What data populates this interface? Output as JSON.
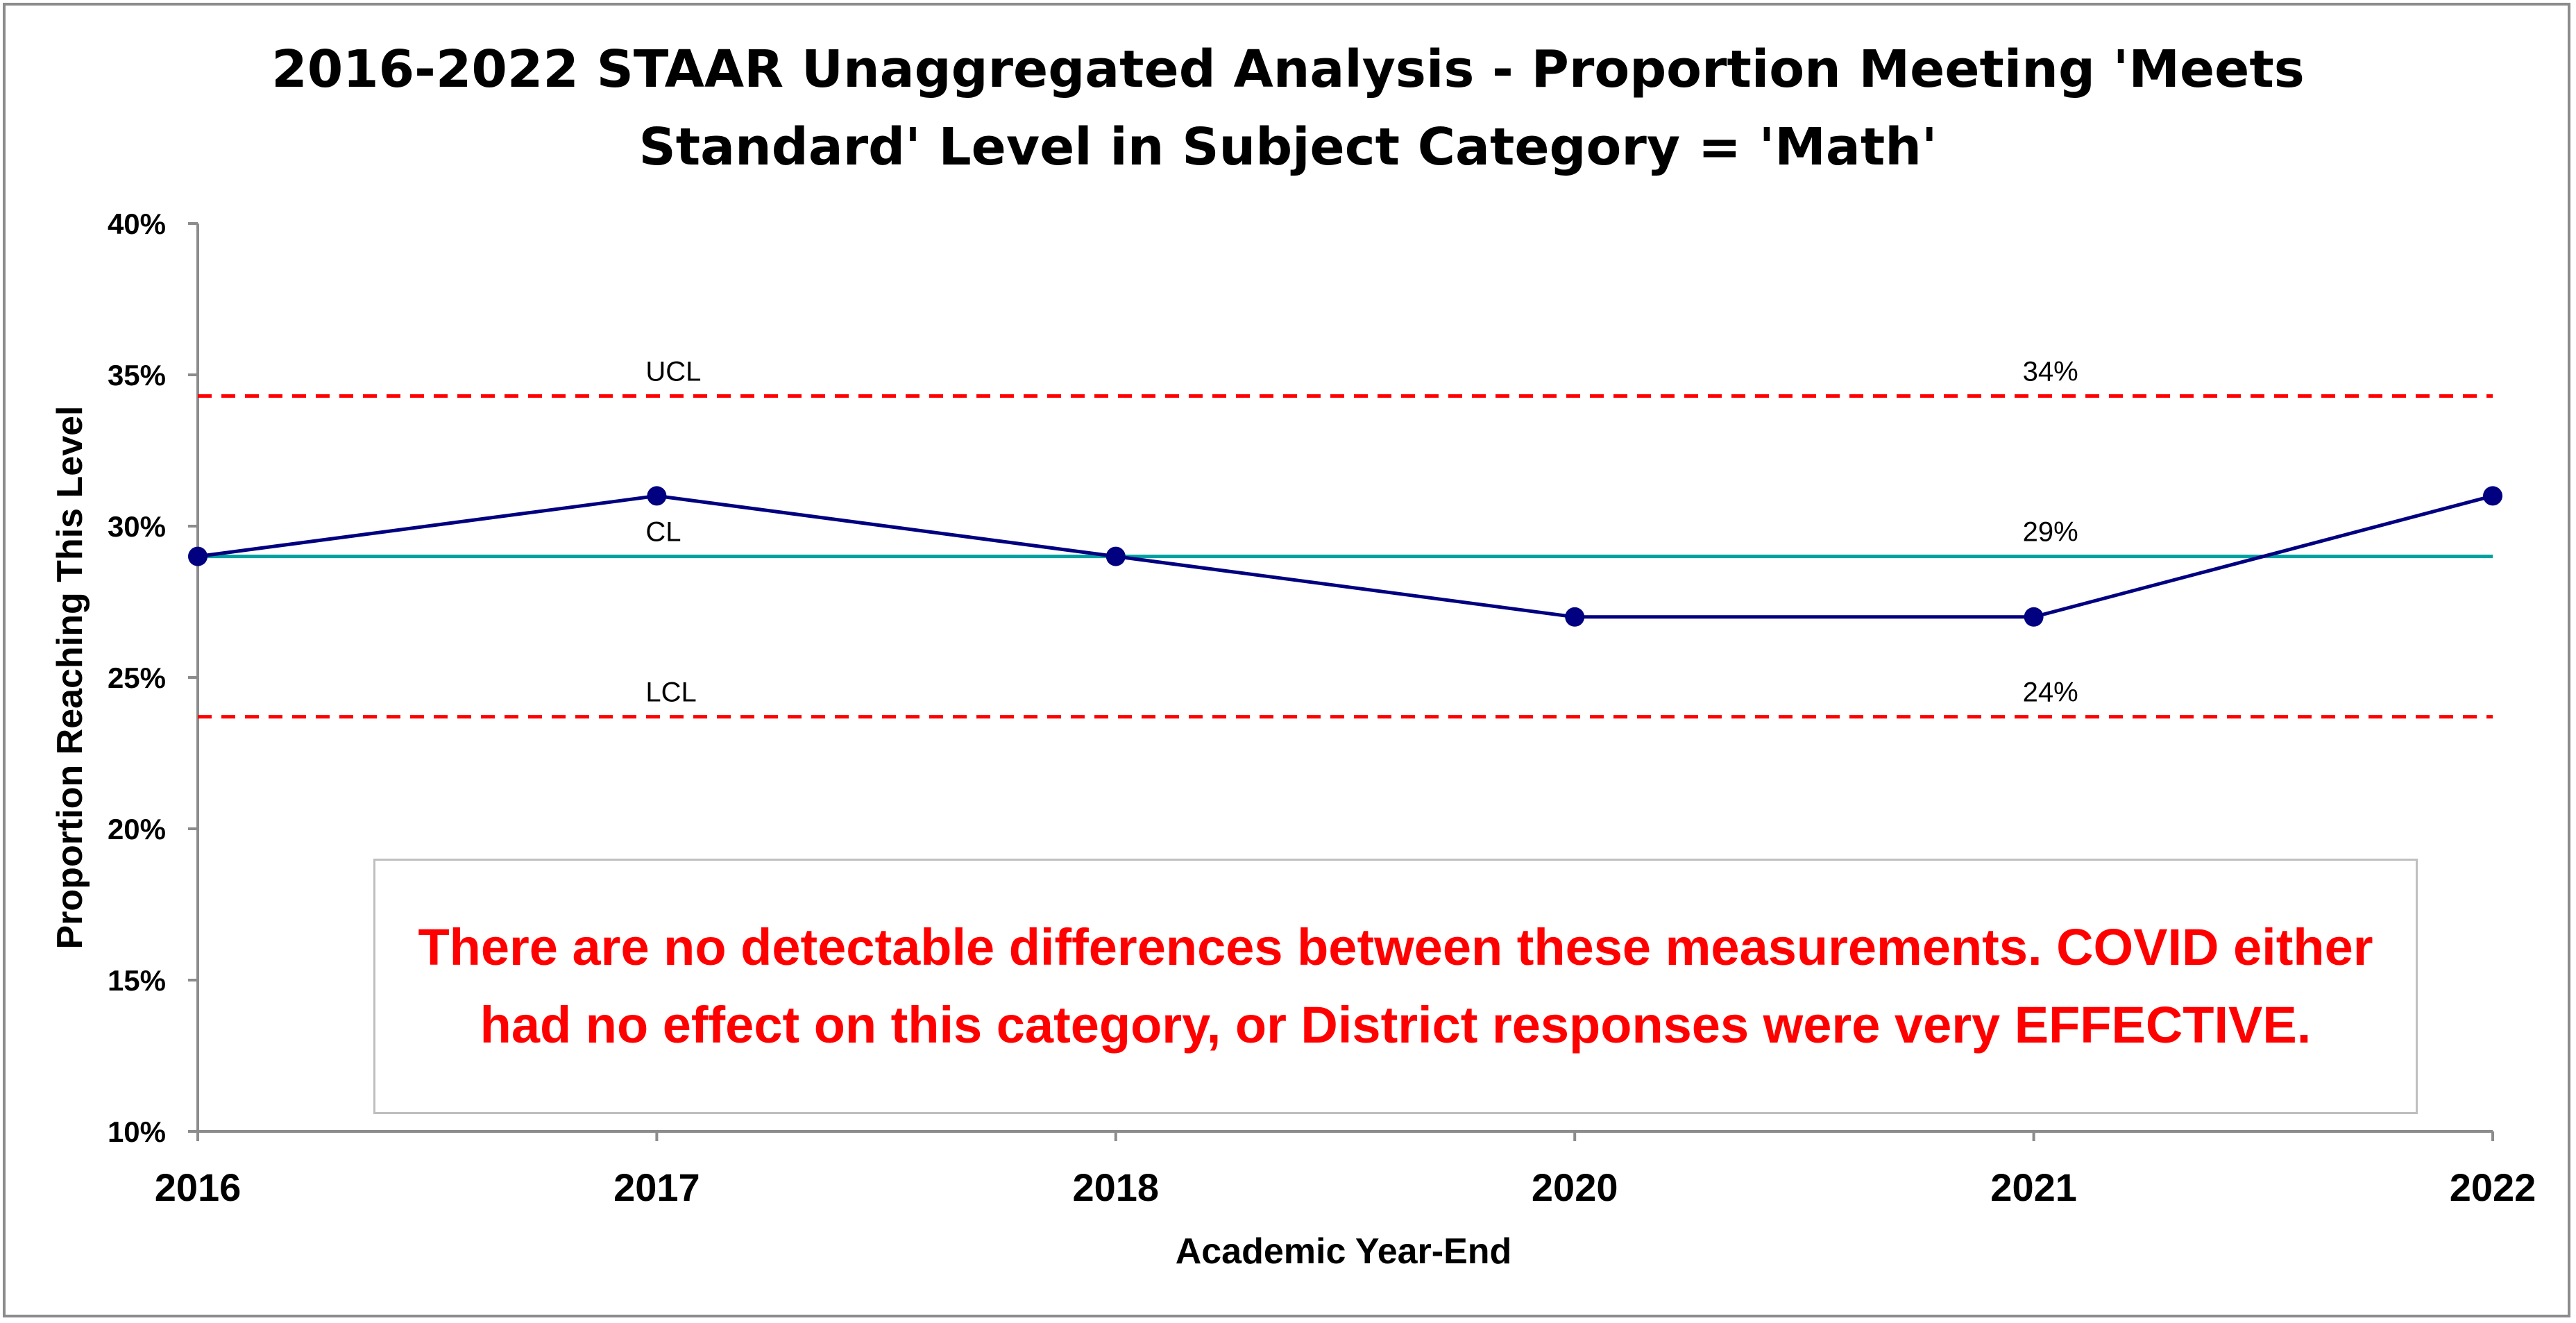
{
  "chart_data": {
    "type": "line",
    "title_lines": [
      "2016-2022 STAAR Unaggregated Analysis - Proportion Meeting 'Meets",
      "Standard' Level in  Subject Category = 'Math'"
    ],
    "xlabel": "Academic Year-End",
    "ylabel": "Proportion Reaching This Level",
    "categories": [
      "2016",
      "2017",
      "2018",
      "2020",
      "2021",
      "2022"
    ],
    "series": [
      {
        "values": [
          0.29,
          0.31,
          0.29,
          0.27,
          0.27,
          0.31
        ]
      }
    ],
    "ylim": [
      0.1,
      0.4
    ],
    "yticks": [
      0.1,
      0.15,
      0.2,
      0.25,
      0.3,
      0.35,
      0.4
    ],
    "ytick_labels": [
      "10%",
      "15%",
      "20%",
      "25%",
      "30%",
      "35%",
      "40%"
    ],
    "control_limits": [
      {
        "name": "UCL",
        "value": 0.343,
        "value_label": "34%",
        "color": "#ff0000",
        "style": "dashed"
      },
      {
        "name": "CL",
        "value": 0.29,
        "value_label": "29%",
        "color": "#00a0a0",
        "style": "solid"
      },
      {
        "name": "LCL",
        "value": 0.237,
        "value_label": "24%",
        "color": "#ff0000",
        "style": "dashed"
      }
    ],
    "series_color": "#000080",
    "grid": false,
    "annotation": "There are no detectable differences between these measurements.  COVID either had no effect on this category, or District responses were very EFFECTIVE."
  }
}
